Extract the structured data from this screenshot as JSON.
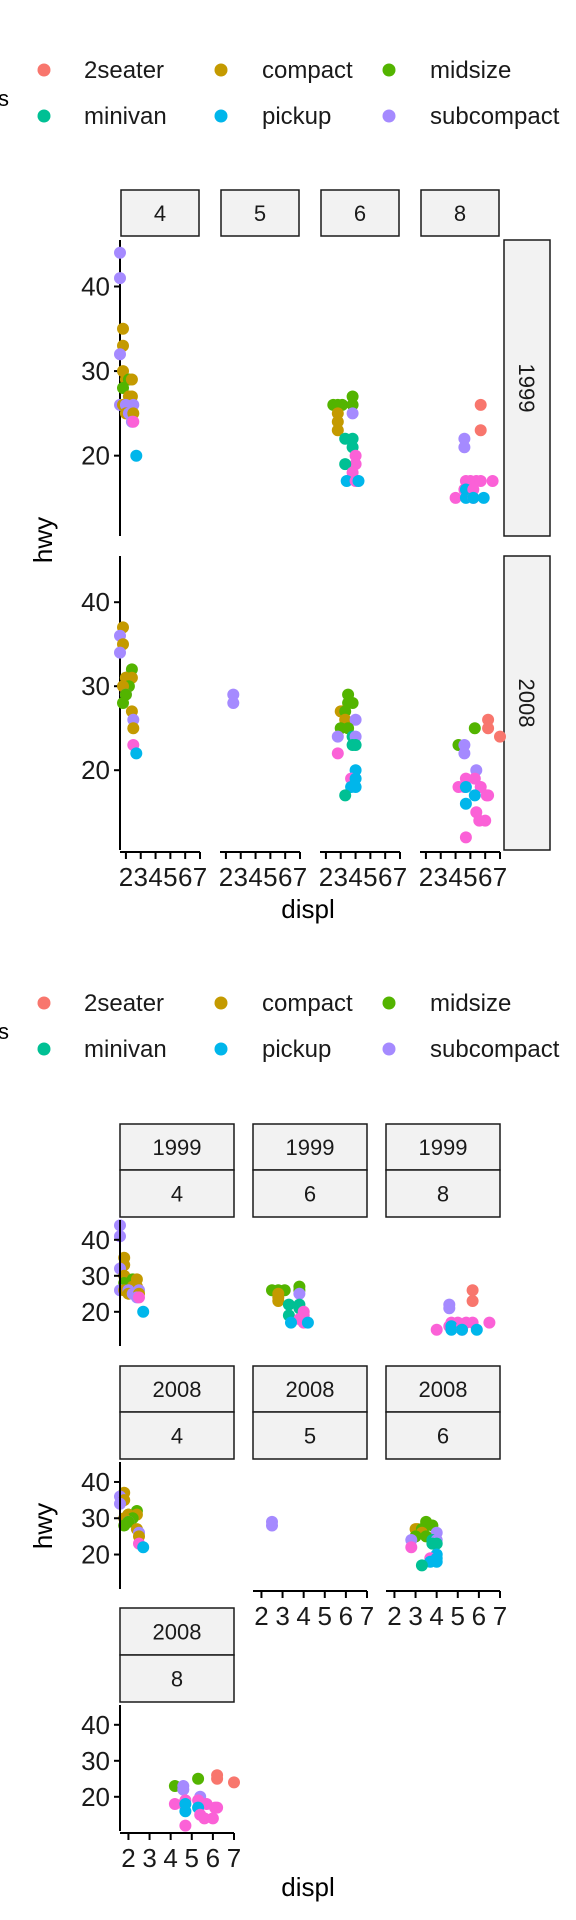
{
  "colors": {
    "2seater": "#F8766D",
    "compact": "#C49A00",
    "midsize": "#53B400",
    "minivan": "#00C094",
    "pickup": "#00B6EB",
    "subcompact": "#A58AFF",
    "suv": "#FB61D7",
    "strip_fill": "#f2f2f2",
    "strip_border": "#1a1a1a"
  },
  "legend": {
    "cut_title": "s",
    "items": [
      "2seater",
      "compact",
      "midsize",
      "minivan",
      "pickup",
      "subcompact"
    ]
  },
  "plot1": {
    "cols": [
      "4",
      "5",
      "6",
      "8"
    ],
    "rows": [
      "1999",
      "2008"
    ]
  },
  "plot2": {
    "panels": [
      {
        "year": "1999",
        "cyl": "4"
      },
      {
        "year": "1999",
        "cyl": "6"
      },
      {
        "year": "1999",
        "cyl": "8"
      },
      {
        "year": "2008",
        "cyl": "4"
      },
      {
        "year": "2008",
        "cyl": "5"
      },
      {
        "year": "2008",
        "cyl": "6"
      },
      {
        "year": "2008",
        "cyl": "8"
      }
    ]
  },
  "chart_data": [
    {
      "type": "scatter",
      "title": "",
      "xlabel": "displ",
      "ylabel": "hwy",
      "xlim": [
        1.6,
        7.0
      ],
      "ylim": [
        10.5,
        45.5
      ],
      "x_ticks": [
        "2",
        "3",
        "4",
        "5",
        "6",
        "7"
      ],
      "y_ticks": [
        "20",
        "30",
        "40"
      ],
      "facet": "cyl (columns) ~ year (rows)",
      "grid": false,
      "legend_position": "top",
      "points": [
        {
          "year": "1999",
          "cyl": "4",
          "class": "subcompact",
          "displ": 1.6,
          "hwy": 44
        },
        {
          "year": "1999",
          "cyl": "4",
          "class": "subcompact",
          "displ": 1.6,
          "hwy": 41
        },
        {
          "year": "1999",
          "cyl": "4",
          "class": "compact",
          "displ": 1.8,
          "hwy": 35
        },
        {
          "year": "1999",
          "cyl": "4",
          "class": "compact",
          "displ": 1.8,
          "hwy": 33
        },
        {
          "year": "1999",
          "cyl": "4",
          "class": "subcompact",
          "displ": 1.6,
          "hwy": 32
        },
        {
          "year": "1999",
          "cyl": "4",
          "class": "compact",
          "displ": 1.8,
          "hwy": 30
        },
        {
          "year": "1999",
          "cyl": "4",
          "class": "compact",
          "displ": 2.0,
          "hwy": 29
        },
        {
          "year": "1999",
          "cyl": "4",
          "class": "midsize",
          "displ": 2.2,
          "hwy": 29
        },
        {
          "year": "1999",
          "cyl": "4",
          "class": "compact",
          "displ": 2.4,
          "hwy": 29
        },
        {
          "year": "1999",
          "cyl": "4",
          "class": "midsize",
          "displ": 1.8,
          "hwy": 28
        },
        {
          "year": "1999",
          "cyl": "4",
          "class": "compact",
          "displ": 2.2,
          "hwy": 27
        },
        {
          "year": "1999",
          "cyl": "4",
          "class": "compact",
          "displ": 2.4,
          "hwy": 27
        },
        {
          "year": "1999",
          "cyl": "4",
          "class": "subcompact",
          "displ": 1.6,
          "hwy": 26
        },
        {
          "year": "1999",
          "cyl": "4",
          "class": "compact",
          "displ": 1.8,
          "hwy": 26
        },
        {
          "year": "1999",
          "cyl": "4",
          "class": "subcompact",
          "displ": 2.0,
          "hwy": 26
        },
        {
          "year": "1999",
          "cyl": "4",
          "class": "subcompact",
          "displ": 2.5,
          "hwy": 26
        },
        {
          "year": "1999",
          "cyl": "4",
          "class": "compact",
          "displ": 2.0,
          "hwy": 25
        },
        {
          "year": "1999",
          "cyl": "4",
          "class": "subcompact",
          "displ": 2.2,
          "hwy": 25
        },
        {
          "year": "1999",
          "cyl": "4",
          "class": "compact",
          "displ": 2.5,
          "hwy": 25
        },
        {
          "year": "1999",
          "cyl": "4",
          "class": "subcompact",
          "displ": 2.4,
          "hwy": 24
        },
        {
          "year": "1999",
          "cyl": "4",
          "class": "suv",
          "displ": 2.5,
          "hwy": 24
        },
        {
          "year": "1999",
          "cyl": "4",
          "class": "pickup",
          "displ": 2.7,
          "hwy": 20
        },
        {
          "year": "1999",
          "cyl": "6",
          "class": "midsize",
          "displ": 2.5,
          "hwy": 26
        },
        {
          "year": "1999",
          "cyl": "6",
          "class": "midsize",
          "displ": 2.8,
          "hwy": 26
        },
        {
          "year": "1999",
          "cyl": "6",
          "class": "midsize",
          "displ": 3.1,
          "hwy": 26
        },
        {
          "year": "1999",
          "cyl": "6",
          "class": "midsize",
          "displ": 3.8,
          "hwy": 26
        },
        {
          "year": "1999",
          "cyl": "6",
          "class": "midsize",
          "displ": 3.8,
          "hwy": 27
        },
        {
          "year": "1999",
          "cyl": "6",
          "class": "compact",
          "displ": 2.8,
          "hwy": 25
        },
        {
          "year": "1999",
          "cyl": "6",
          "class": "compact",
          "displ": 2.8,
          "hwy": 24
        },
        {
          "year": "1999",
          "cyl": "6",
          "class": "compact",
          "displ": 2.8,
          "hwy": 23
        },
        {
          "year": "1999",
          "cyl": "6",
          "class": "subcompact",
          "displ": 3.8,
          "hwy": 25
        },
        {
          "year": "1999",
          "cyl": "6",
          "class": "minivan",
          "displ": 3.3,
          "hwy": 22
        },
        {
          "year": "1999",
          "cyl": "6",
          "class": "minivan",
          "displ": 3.8,
          "hwy": 22
        },
        {
          "year": "1999",
          "cyl": "6",
          "class": "minivan",
          "displ": 3.8,
          "hwy": 21
        },
        {
          "year": "1999",
          "cyl": "6",
          "class": "suv",
          "displ": 4.0,
          "hwy": 20
        },
        {
          "year": "1999",
          "cyl": "6",
          "class": "suv",
          "displ": 4.0,
          "hwy": 19
        },
        {
          "year": "1999",
          "cyl": "6",
          "class": "minivan",
          "displ": 3.3,
          "hwy": 19
        },
        {
          "year": "1999",
          "cyl": "6",
          "class": "suv",
          "displ": 3.8,
          "hwy": 18
        },
        {
          "year": "1999",
          "cyl": "6",
          "class": "pickup",
          "displ": 3.4,
          "hwy": 17
        },
        {
          "year": "1999",
          "cyl": "6",
          "class": "suv",
          "displ": 4.0,
          "hwy": 17
        },
        {
          "year": "1999",
          "cyl": "6",
          "class": "pickup",
          "displ": 4.2,
          "hwy": 17
        },
        {
          "year": "1999",
          "cyl": "8",
          "class": "2seater",
          "displ": 5.7,
          "hwy": 26
        },
        {
          "year": "1999",
          "cyl": "8",
          "class": "2seater",
          "displ": 5.7,
          "hwy": 23
        },
        {
          "year": "1999",
          "cyl": "8",
          "class": "subcompact",
          "displ": 4.6,
          "hwy": 22
        },
        {
          "year": "1999",
          "cyl": "8",
          "class": "subcompact",
          "displ": 4.6,
          "hwy": 21
        },
        {
          "year": "1999",
          "cyl": "8",
          "class": "suv",
          "displ": 4.7,
          "hwy": 17
        },
        {
          "year": "1999",
          "cyl": "8",
          "class": "suv",
          "displ": 5.0,
          "hwy": 17
        },
        {
          "year": "1999",
          "cyl": "8",
          "class": "suv",
          "displ": 5.4,
          "hwy": 17
        },
        {
          "year": "1999",
          "cyl": "8",
          "class": "suv",
          "displ": 5.7,
          "hwy": 17
        },
        {
          "year": "1999",
          "cyl": "8",
          "class": "suv",
          "displ": 6.5,
          "hwy": 17
        },
        {
          "year": "1999",
          "cyl": "8",
          "class": "suv",
          "displ": 4.6,
          "hwy": 16
        },
        {
          "year": "1999",
          "cyl": "8",
          "class": "pickup",
          "displ": 4.7,
          "hwy": 16
        },
        {
          "year": "1999",
          "cyl": "8",
          "class": "suv",
          "displ": 5.2,
          "hwy": 16
        },
        {
          "year": "1999",
          "cyl": "8",
          "class": "suv",
          "displ": 4.0,
          "hwy": 15
        },
        {
          "year": "1999",
          "cyl": "8",
          "class": "pickup",
          "displ": 4.7,
          "hwy": 15
        },
        {
          "year": "1999",
          "cyl": "8",
          "class": "suv",
          "displ": 5.2,
          "hwy": 15
        },
        {
          "year": "1999",
          "cyl": "8",
          "class": "pickup",
          "displ": 5.2,
          "hwy": 15
        },
        {
          "year": "1999",
          "cyl": "8",
          "class": "pickup",
          "displ": 5.9,
          "hwy": 15
        },
        {
          "year": "2008",
          "cyl": "4",
          "class": "compact",
          "displ": 1.8,
          "hwy": 37
        },
        {
          "year": "2008",
          "cyl": "4",
          "class": "subcompact",
          "displ": 1.6,
          "hwy": 36
        },
        {
          "year": "2008",
          "cyl": "4",
          "class": "compact",
          "displ": 1.8,
          "hwy": 35
        },
        {
          "year": "2008",
          "cyl": "4",
          "class": "subcompact",
          "displ": 1.6,
          "hwy": 34
        },
        {
          "year": "2008",
          "cyl": "4",
          "class": "midsize",
          "displ": 2.4,
          "hwy": 32
        },
        {
          "year": "2008",
          "cyl": "4",
          "class": "midsize",
          "displ": 2.0,
          "hwy": 31
        },
        {
          "year": "2008",
          "cyl": "4",
          "class": "compact",
          "displ": 2.0,
          "hwy": 31
        },
        {
          "year": "2008",
          "cyl": "4",
          "class": "compact",
          "displ": 2.4,
          "hwy": 31
        },
        {
          "year": "2008",
          "cyl": "4",
          "class": "midsize",
          "displ": 2.2,
          "hwy": 30
        },
        {
          "year": "2008",
          "cyl": "4",
          "class": "compact",
          "displ": 1.8,
          "hwy": 30
        },
        {
          "year": "2008",
          "cyl": "4",
          "class": "subcompact",
          "displ": 2.0,
          "hwy": 29
        },
        {
          "year": "2008",
          "cyl": "4",
          "class": "midsize",
          "displ": 2.0,
          "hwy": 29
        },
        {
          "year": "2008",
          "cyl": "4",
          "class": "midsize",
          "displ": 1.8,
          "hwy": 28
        },
        {
          "year": "2008",
          "cyl": "4",
          "class": "compact",
          "displ": 2.4,
          "hwy": 27
        },
        {
          "year": "2008",
          "cyl": "4",
          "class": "subcompact",
          "displ": 2.5,
          "hwy": 26
        },
        {
          "year": "2008",
          "cyl": "4",
          "class": "compact",
          "displ": 2.5,
          "hwy": 25
        },
        {
          "year": "2008",
          "cyl": "4",
          "class": "suv",
          "displ": 2.5,
          "hwy": 23
        },
        {
          "year": "2008",
          "cyl": "4",
          "class": "pickup",
          "displ": 2.7,
          "hwy": 22
        },
        {
          "year": "2008",
          "cyl": "5",
          "class": "subcompact",
          "displ": 2.5,
          "hwy": 29
        },
        {
          "year": "2008",
          "cyl": "5",
          "class": "subcompact",
          "displ": 2.5,
          "hwy": 28
        },
        {
          "year": "2008",
          "cyl": "6",
          "class": "midsize",
          "displ": 3.5,
          "hwy": 29
        },
        {
          "year": "2008",
          "cyl": "6",
          "class": "midsize",
          "displ": 3.5,
          "hwy": 28
        },
        {
          "year": "2008",
          "cyl": "6",
          "class": "midsize",
          "displ": 3.8,
          "hwy": 28
        },
        {
          "year": "2008",
          "cyl": "6",
          "class": "compact",
          "displ": 3.0,
          "hwy": 27
        },
        {
          "year": "2008",
          "cyl": "6",
          "class": "compact",
          "displ": 3.1,
          "hwy": 27
        },
        {
          "year": "2008",
          "cyl": "6",
          "class": "midsize",
          "displ": 3.3,
          "hwy": 27
        },
        {
          "year": "2008",
          "cyl": "6",
          "class": "compact",
          "displ": 3.3,
          "hwy": 26
        },
        {
          "year": "2008",
          "cyl": "6",
          "class": "subcompact",
          "displ": 4.0,
          "hwy": 26
        },
        {
          "year": "2008",
          "cyl": "6",
          "class": "midsize",
          "displ": 3.0,
          "hwy": 25
        },
        {
          "year": "2008",
          "cyl": "6",
          "class": "midsize",
          "displ": 3.5,
          "hwy": 25
        },
        {
          "year": "2008",
          "cyl": "6",
          "class": "minivan",
          "displ": 3.8,
          "hwy": 24
        },
        {
          "year": "2008",
          "cyl": "6",
          "class": "subcompact",
          "displ": 2.8,
          "hwy": 24
        },
        {
          "year": "2008",
          "cyl": "6",
          "class": "subcompact",
          "displ": 4.0,
          "hwy": 24
        },
        {
          "year": "2008",
          "cyl": "6",
          "class": "minivan",
          "displ": 3.8,
          "hwy": 23
        },
        {
          "year": "2008",
          "cyl": "6",
          "class": "minivan",
          "displ": 4.0,
          "hwy": 23
        },
        {
          "year": "2008",
          "cyl": "6",
          "class": "suv",
          "displ": 2.8,
          "hwy": 22
        },
        {
          "year": "2008",
          "cyl": "6",
          "class": "pickup",
          "displ": 4.0,
          "hwy": 20
        },
        {
          "year": "2008",
          "cyl": "6",
          "class": "suv",
          "displ": 3.7,
          "hwy": 19
        },
        {
          "year": "2008",
          "cyl": "6",
          "class": "pickup",
          "displ": 4.0,
          "hwy": 19
        },
        {
          "year": "2008",
          "cyl": "6",
          "class": "pickup",
          "displ": 3.7,
          "hwy": 18
        },
        {
          "year": "2008",
          "cyl": "6",
          "class": "pickup",
          "displ": 4.0,
          "hwy": 18
        },
        {
          "year": "2008",
          "cyl": "6",
          "class": "minivan",
          "displ": 3.3,
          "hwy": 17
        },
        {
          "year": "2008",
          "cyl": "8",
          "class": "2seater",
          "displ": 6.2,
          "hwy": 26
        },
        {
          "year": "2008",
          "cyl": "8",
          "class": "2seater",
          "displ": 6.2,
          "hwy": 25
        },
        {
          "year": "2008",
          "cyl": "8",
          "class": "midsize",
          "displ": 5.3,
          "hwy": 25
        },
        {
          "year": "2008",
          "cyl": "8",
          "class": "2seater",
          "displ": 7.0,
          "hwy": 24
        },
        {
          "year": "2008",
          "cyl": "8",
          "class": "midsize",
          "displ": 4.2,
          "hwy": 23
        },
        {
          "year": "2008",
          "cyl": "8",
          "class": "subcompact",
          "displ": 4.6,
          "hwy": 23
        },
        {
          "year": "2008",
          "cyl": "8",
          "class": "subcompact",
          "displ": 4.6,
          "hwy": 22
        },
        {
          "year": "2008",
          "cyl": "8",
          "class": "subcompact",
          "displ": 5.4,
          "hwy": 20
        },
        {
          "year": "2008",
          "cyl": "8",
          "class": "suv",
          "displ": 4.7,
          "hwy": 19
        },
        {
          "year": "2008",
          "cyl": "8",
          "class": "suv",
          "displ": 5.3,
          "hwy": 19
        },
        {
          "year": "2008",
          "cyl": "8",
          "class": "suv",
          "displ": 4.6,
          "hwy": 18
        },
        {
          "year": "2008",
          "cyl": "8",
          "class": "suv",
          "displ": 5.7,
          "hwy": 18
        },
        {
          "year": "2008",
          "cyl": "8",
          "class": "suv",
          "displ": 4.2,
          "hwy": 18
        },
        {
          "year": "2008",
          "cyl": "8",
          "class": "pickup",
          "displ": 4.7,
          "hwy": 18
        },
        {
          "year": "2008",
          "cyl": "8",
          "class": "pickup",
          "displ": 5.3,
          "hwy": 17
        },
        {
          "year": "2008",
          "cyl": "8",
          "class": "suv",
          "displ": 6.1,
          "hwy": 17
        },
        {
          "year": "2008",
          "cyl": "8",
          "class": "suv",
          "displ": 6.2,
          "hwy": 17
        },
        {
          "year": "2008",
          "cyl": "8",
          "class": "pickup",
          "displ": 4.7,
          "hwy": 16
        },
        {
          "year": "2008",
          "cyl": "8",
          "class": "suv",
          "displ": 5.4,
          "hwy": 15
        },
        {
          "year": "2008",
          "cyl": "8",
          "class": "suv",
          "displ": 5.6,
          "hwy": 14
        },
        {
          "year": "2008",
          "cyl": "8",
          "class": "suv",
          "displ": 6.0,
          "hwy": 14
        },
        {
          "year": "2008",
          "cyl": "8",
          "class": "suv",
          "displ": 4.7,
          "hwy": 12
        }
      ]
    }
  ]
}
